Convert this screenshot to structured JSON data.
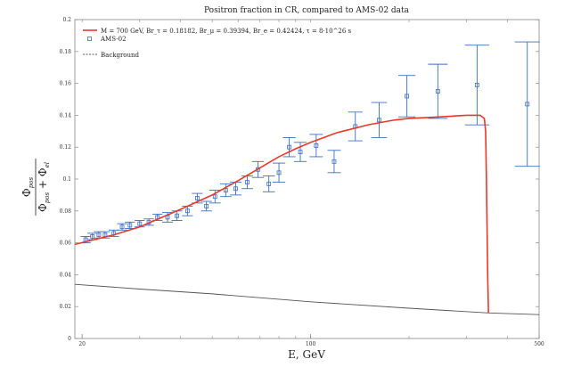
{
  "chart_data": {
    "type": "scatter",
    "title": "Positron fraction in CR, compared to AMS-02 data",
    "xlabel": "E, GeV",
    "ylabel": {
      "numerator": "Φ",
      "numerator_sub": "pos",
      "denominator": "Φ",
      "denominator_sub1": "pos",
      "denominator_plus": " + Φ",
      "denominator_sub2": "el"
    },
    "x_scale": "log",
    "xlim": [
      19,
      500
    ],
    "ylim": [
      0,
      0.2
    ],
    "x_ticks": [
      20,
      100,
      500
    ],
    "x_tick_labels": [
      "20",
      "100",
      "500"
    ],
    "y_ticks": [
      0,
      0.02,
      0.04,
      0.06,
      0.08,
      0.1,
      0.12,
      0.14,
      0.16,
      0.18,
      0.2
    ],
    "y_tick_labels": [
      "0",
      "0.02",
      "0.04",
      "0.06",
      "0.08",
      "0.1",
      "0.12",
      "0.14",
      "0.16",
      "0.18",
      "0.2"
    ],
    "grid": false,
    "legend_position": "top-left",
    "series": [
      {
        "name": "M = 700 GeV, Br_τ = 0.18182, Br_μ = 0.39394, Br_e = 0.42424, τ = 8·10^26 s",
        "kind": "line",
        "color": "#e8382a",
        "x": [
          19,
          25,
          30,
          40,
          50,
          60,
          70,
          80,
          90,
          100,
          120,
          150,
          180,
          200,
          250,
          300,
          330,
          340,
          343,
          345,
          348,
          350
        ],
        "y": [
          0.059,
          0.065,
          0.07,
          0.081,
          0.09,
          0.099,
          0.107,
          0.114,
          0.119,
          0.123,
          0.129,
          0.134,
          0.137,
          0.138,
          0.139,
          0.14,
          0.14,
          0.138,
          0.13,
          0.1,
          0.04,
          0.016
        ]
      },
      {
        "name": "AMS-02",
        "kind": "points_with_errorbars",
        "color": "#3c6ec2",
        "x": [
          20.5,
          21.5,
          22.5,
          23.5,
          25,
          26.5,
          28,
          30,
          32,
          34,
          36.5,
          39,
          42,
          45,
          48,
          51,
          55,
          59,
          64,
          69,
          74.5,
          80,
          86,
          93,
          104,
          118,
          137,
          162,
          197,
          245,
          323,
          460
        ],
        "y": [
          0.062,
          0.064,
          0.065,
          0.065,
          0.066,
          0.07,
          0.071,
          0.072,
          0.073,
          0.076,
          0.076,
          0.077,
          0.08,
          0.088,
          0.083,
          0.089,
          0.093,
          0.094,
          0.098,
          0.106,
          0.097,
          0.104,
          0.12,
          0.117,
          0.121,
          0.111,
          0.133,
          0.137,
          0.152,
          0.155,
          0.159,
          0.147
        ],
        "err": [
          0.002,
          0.002,
          0.002,
          0.002,
          0.002,
          0.002,
          0.002,
          0.002,
          0.002,
          0.002,
          0.003,
          0.003,
          0.003,
          0.003,
          0.003,
          0.004,
          0.004,
          0.004,
          0.004,
          0.005,
          0.005,
          0.006,
          0.006,
          0.006,
          0.007,
          0.007,
          0.009,
          0.011,
          0.013,
          0.017,
          0.025,
          0.039
        ]
      },
      {
        "name": "Background",
        "kind": "line",
        "color": "#555555",
        "x": [
          19,
          30,
          50,
          100,
          200,
          350,
          500
        ],
        "y": [
          0.034,
          0.031,
          0.028,
          0.023,
          0.019,
          0.016,
          0.015
        ]
      }
    ]
  }
}
